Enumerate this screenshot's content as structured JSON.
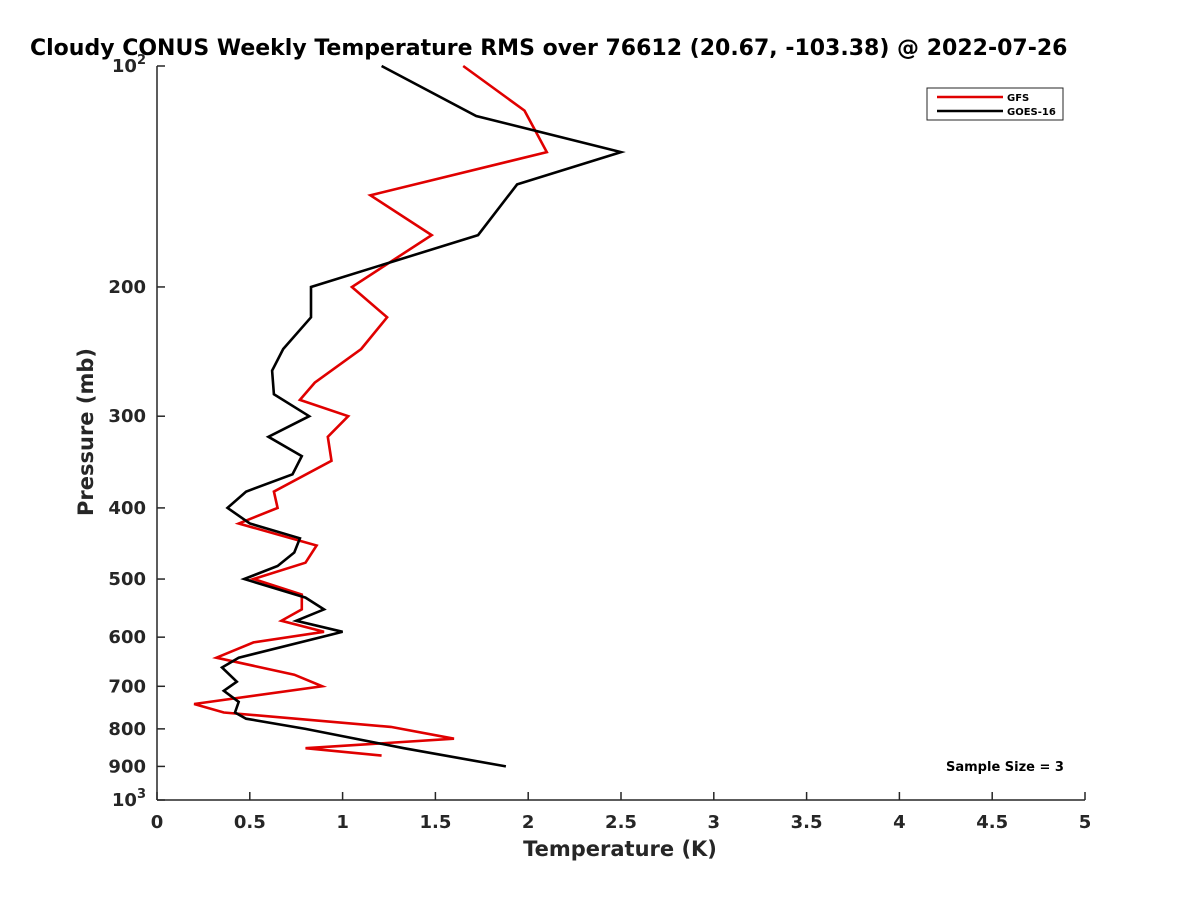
{
  "chart_data": {
    "type": "line",
    "title": "Cloudy CONUS Weekly Temperature RMS over 76612 (20.67, -103.38) @ 2022-07-26",
    "xlabel": "Temperature (K)",
    "ylabel": "Pressure (mb)",
    "xlim": [
      0,
      5
    ],
    "ylim": [
      1000,
      100
    ],
    "yscale": "log",
    "x_ticks": [
      0,
      0.5,
      1,
      1.5,
      2,
      2.5,
      3,
      3.5,
      4,
      4.5,
      5
    ],
    "x_tick_labels": [
      "0",
      "0.5",
      "1",
      "1.5",
      "2",
      "2.5",
      "3",
      "3.5",
      "4",
      "4.5",
      "5"
    ],
    "y_ticks": [
      200,
      300,
      400,
      500,
      600,
      700,
      800,
      900
    ],
    "y_tick_labels": [
      "200",
      "300",
      "400",
      "500",
      "600",
      "700",
      "800",
      "900"
    ],
    "y_limit_labels": {
      "top": {
        "base": "10",
        "exp": "2"
      },
      "bottom": {
        "base": "10",
        "exp": "3"
      }
    },
    "legend": {
      "location": "top-right"
    },
    "annotation": "Sample Size = 3",
    "series": [
      {
        "name": "GFS",
        "color": "#e00000",
        "points": [
          [
            1.65,
            100
          ],
          [
            1.98,
            115
          ],
          [
            2.1,
            131
          ],
          [
            1.15,
            150
          ],
          [
            1.48,
            170
          ],
          [
            1.05,
            200
          ],
          [
            1.24,
            220
          ],
          [
            1.1,
            243
          ],
          [
            0.85,
            270
          ],
          [
            0.77,
            285
          ],
          [
            1.03,
            300
          ],
          [
            0.92,
            320
          ],
          [
            0.94,
            345
          ],
          [
            0.63,
            380
          ],
          [
            0.65,
            400
          ],
          [
            0.44,
            420
          ],
          [
            0.86,
            450
          ],
          [
            0.8,
            475
          ],
          [
            0.52,
            500
          ],
          [
            0.78,
            525
          ],
          [
            0.78,
            550
          ],
          [
            0.67,
            570
          ],
          [
            0.9,
            590
          ],
          [
            0.52,
            610
          ],
          [
            0.32,
            640
          ],
          [
            0.74,
            675
          ],
          [
            0.89,
            700
          ],
          [
            0.2,
            740
          ],
          [
            0.36,
            760
          ],
          [
            1.26,
            795
          ],
          [
            1.6,
            825
          ],
          [
            0.8,
            850
          ],
          [
            1.21,
            870
          ]
        ]
      },
      {
        "name": "GOES-16",
        "color": "#000000",
        "points": [
          [
            1.21,
            100
          ],
          [
            1.72,
            117
          ],
          [
            2.5,
            131
          ],
          [
            1.94,
            145
          ],
          [
            1.73,
            170
          ],
          [
            0.83,
            200
          ],
          [
            0.83,
            220
          ],
          [
            0.68,
            243
          ],
          [
            0.62,
            260
          ],
          [
            0.63,
            280
          ],
          [
            0.82,
            300
          ],
          [
            0.6,
            320
          ],
          [
            0.78,
            340
          ],
          [
            0.73,
            360
          ],
          [
            0.48,
            380
          ],
          [
            0.38,
            400
          ],
          [
            0.5,
            420
          ],
          [
            0.77,
            440
          ],
          [
            0.74,
            460
          ],
          [
            0.65,
            480
          ],
          [
            0.47,
            500
          ],
          [
            0.8,
            530
          ],
          [
            0.9,
            550
          ],
          [
            0.75,
            570
          ],
          [
            1.0,
            590
          ],
          [
            0.44,
            640
          ],
          [
            0.35,
            660
          ],
          [
            0.43,
            690
          ],
          [
            0.36,
            710
          ],
          [
            0.44,
            735
          ],
          [
            0.42,
            760
          ],
          [
            0.48,
            775
          ],
          [
            0.8,
            800
          ],
          [
            1.33,
            850
          ],
          [
            1.88,
            900
          ]
        ]
      }
    ]
  }
}
